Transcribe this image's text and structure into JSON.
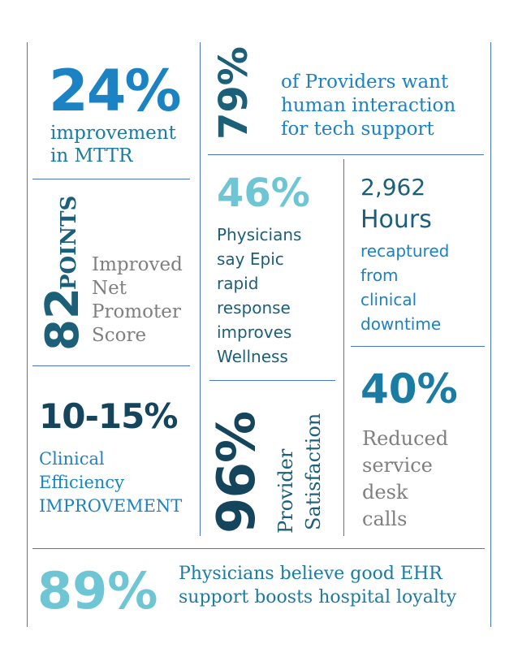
{
  "stats": {
    "mttr": {
      "value": "24%",
      "line1": "improvement",
      "line2": "in MTTR"
    },
    "providers": {
      "value": "79%",
      "line1": "of Providers want",
      "line2": "human interaction",
      "line3": "for tech support"
    },
    "nps": {
      "value": "82",
      "unit": "POINTS",
      "line1": "Improved",
      "line2": "Net",
      "line3": "Promoter",
      "line4": "Score"
    },
    "wellness": {
      "value": "46%",
      "line1": "Physicians",
      "line2": "say Epic",
      "line3": "rapid",
      "line4": "response",
      "line5": "improves",
      "line6": "Wellness"
    },
    "hours": {
      "value": "2,962",
      "unit": "Hours",
      "line1": "recaptured",
      "line2": "from",
      "line3": "clinical",
      "line4": "downtime"
    },
    "efficiency": {
      "value": "10-15%",
      "line1": "Clinical",
      "line2": "Efficiency",
      "line3": "IMPROVEMENT"
    },
    "satisfaction": {
      "value": "96%",
      "line1": "Provider",
      "line2": "Satisfaction"
    },
    "calls": {
      "value": "40%",
      "line1": "Reduced",
      "line2": "service",
      "line3": "desk",
      "line4": "calls"
    },
    "loyalty": {
      "value": "89%",
      "line1": "Physicians believe good EHR",
      "line2": "support boosts hospital loyalty"
    }
  }
}
